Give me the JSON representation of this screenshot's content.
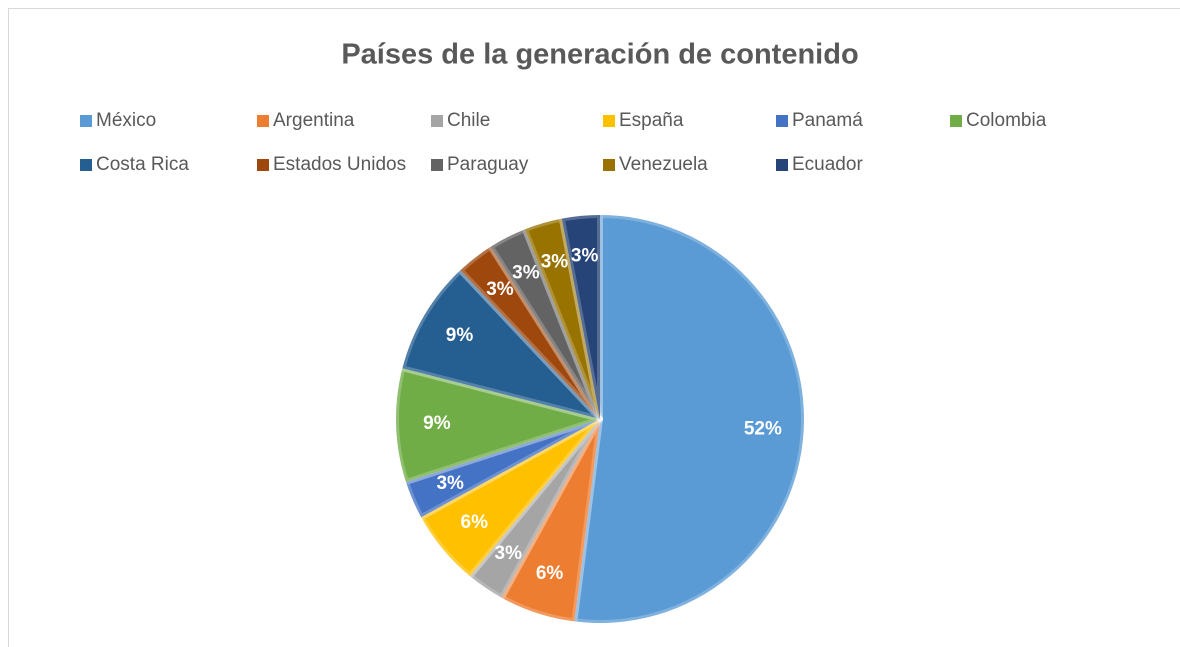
{
  "chart_data": {
    "type": "pie",
    "title": "Países de la generación de contenido",
    "categories": [
      "México",
      "Argentina",
      "Chile",
      "España",
      "Panamá",
      "Colombia",
      "Costa Rica",
      "Estados Unidos",
      "Paraguay",
      "Venezuela",
      "Ecuador"
    ],
    "values": [
      52,
      6,
      3,
      6,
      3,
      9,
      9,
      3,
      3,
      3,
      3
    ],
    "value_labels": [
      "52%",
      "6%",
      "3%",
      "6%",
      "3%",
      "9%",
      "9%",
      "3%",
      "3%",
      "3%",
      "3%"
    ],
    "colors": [
      "#5b9bd5",
      "#ed7d31",
      "#a5a5a5",
      "#ffc000",
      "#4472c4",
      "#70ad47",
      "#255e91",
      "#9e480e",
      "#636363",
      "#997300",
      "#264478"
    ],
    "legend": "top"
  }
}
